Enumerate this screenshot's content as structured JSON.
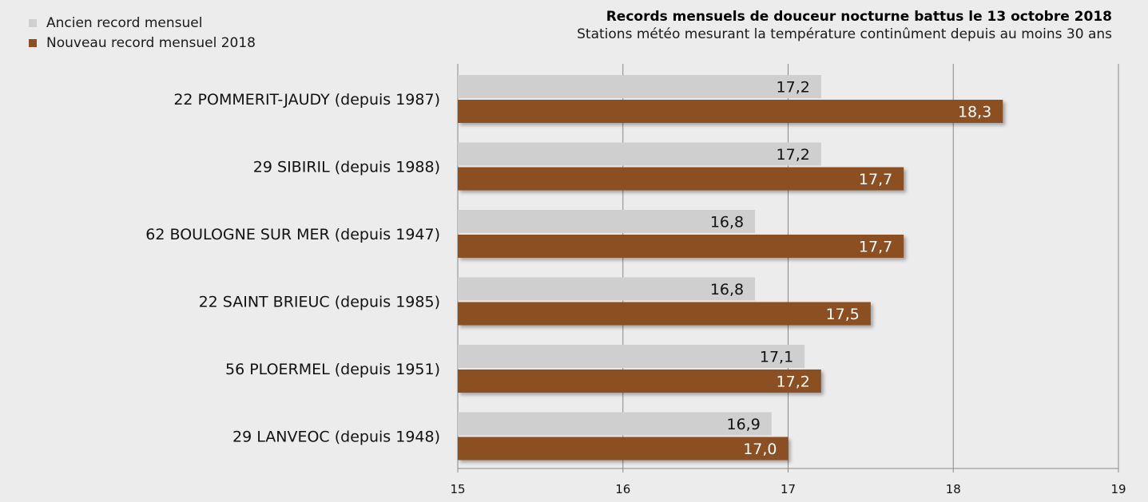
{
  "legend": {
    "items": [
      {
        "label": "Ancien record mensuel",
        "color": "#cfcfcf"
      },
      {
        "label": "Nouveau record mensuel 2018",
        "color": "#8c5023"
      }
    ]
  },
  "title": "Records mensuels de douceur nocturne battus le 13 octobre 2018",
  "subtitle": "Stations météo mesurant la température continûment depuis au moins 30 ans",
  "chart_data": {
    "type": "bar",
    "orientation": "horizontal",
    "title": "Records mensuels de douceur nocturne battus le 13 octobre 2018",
    "subtitle": "Stations météo mesurant la température continûment depuis au moins 30 ans",
    "categories": [
      "22 POMMERIT-JAUDY (depuis 1987)",
      "29 SIBIRIL (depuis 1988)",
      "62 BOULOGNE SUR MER (depuis 1947)",
      "22 SAINT BRIEUC (depuis 1985)",
      "56 PLOERMEL (depuis 1951)",
      "29 LANVEOC (depuis 1948)"
    ],
    "series": [
      {
        "name": "Ancien record mensuel",
        "color": "#cfcfcf",
        "values": [
          17.2,
          17.2,
          16.8,
          16.8,
          17.1,
          16.9
        ],
        "labels": [
          "17,2",
          "17,2",
          "16,8",
          "16,8",
          "17,1",
          "16,9"
        ]
      },
      {
        "name": "Nouveau record mensuel 2018",
        "color": "#8c5023",
        "values": [
          18.3,
          17.7,
          17.7,
          17.5,
          17.2,
          17.0
        ],
        "labels": [
          "18,3",
          "17,7",
          "17,7",
          "17,5",
          "17,2",
          "17,0"
        ]
      }
    ],
    "xlim": [
      15,
      19
    ],
    "xticks": [
      "15",
      "16",
      "17",
      "18",
      "19"
    ],
    "grid": true,
    "legend_position": "top-left"
  }
}
